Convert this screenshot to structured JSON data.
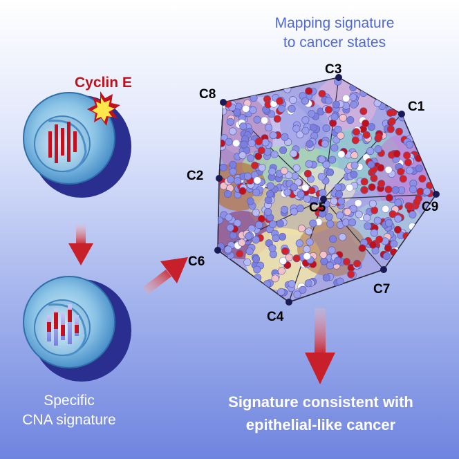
{
  "diagram": {
    "mapping_title_line1": "Mapping signature",
    "mapping_title_line2": "to cancer states",
    "cyclin_label": "Cyclin E",
    "cna_label_line1": "Specific",
    "cna_label_line2": "CNA signature",
    "conclusion_line1": "Signature consistent with",
    "conclusion_line2": "epithelial-like cancer",
    "states": [
      "C1",
      "C2",
      "C3",
      "C4",
      "C5",
      "C6",
      "C7",
      "C8",
      "C9"
    ],
    "colors": {
      "title_blue": "#4f68d8",
      "cyclin_red": "#c0101c",
      "arrow_red": "#c8202a",
      "cell_blue": "#5aa6d8",
      "dot_red": "#d42027",
      "dot_blue": "#8a8fe8"
    }
  }
}
